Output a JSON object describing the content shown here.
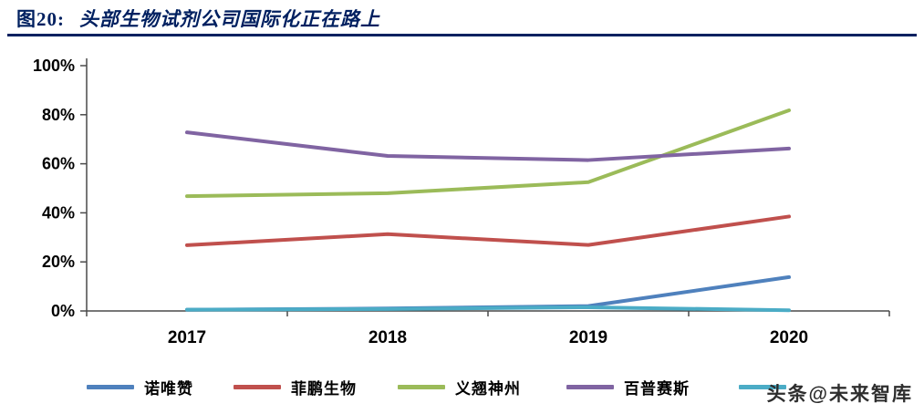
{
  "figure": {
    "label": "图20:",
    "title": "头部生物试剂公司国际化正在路上"
  },
  "watermark": "头条@未来智库",
  "colors": {
    "title": "#002060",
    "rule": "#002060",
    "axis": "#4a4a4a",
    "tick_label": "#000000"
  },
  "chart_data": {
    "type": "line",
    "title": "头部生物试剂公司国际化正在路上",
    "categories": [
      "2017",
      "2018",
      "2019",
      "2020"
    ],
    "xlabel": "",
    "ylabel": "",
    "ylim": [
      0,
      100
    ],
    "yticks": [
      0,
      20,
      40,
      60,
      80,
      100
    ],
    "ytick_labels": [
      "0%",
      "20%",
      "40%",
      "60%",
      "80%",
      "100%"
    ],
    "grid": false,
    "legend_position": "bottom",
    "series": [
      {
        "name": "诺唯赞",
        "color": "#4F81BD",
        "values": [
          0.5,
          1.0,
          2.0,
          13.8
        ]
      },
      {
        "name": "菲鹏生物",
        "color": "#C0504D",
        "values": [
          26.8,
          31.3,
          26.9,
          38.5
        ]
      },
      {
        "name": "义翘神州",
        "color": "#9BBB59",
        "values": [
          46.8,
          48.0,
          52.5,
          81.8
        ]
      },
      {
        "name": "百普赛斯",
        "color": "#8064A2",
        "values": [
          72.8,
          63.2,
          61.5,
          66.2
        ]
      },
      {
        "name": "",
        "color": "#4BACC6",
        "values": [
          0.5,
          0.8,
          1.5,
          0.3
        ]
      }
    ]
  }
}
